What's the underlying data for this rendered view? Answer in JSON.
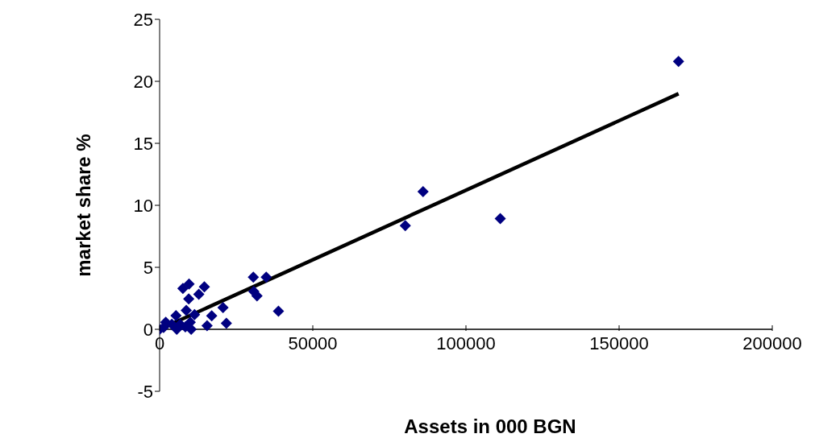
{
  "chart_data": {
    "type": "scatter",
    "xlabel": "Assets in 000 BGN",
    "ylabel": "market share %",
    "xlim": [
      0,
      200000
    ],
    "xticks": [
      0,
      50000,
      100000,
      150000,
      200000
    ],
    "ylim": [
      -5,
      25
    ],
    "yticks": [
      -5,
      0,
      5,
      10,
      15,
      20,
      25
    ],
    "grid": false,
    "legend": false,
    "marker": "diamond",
    "series": [
      {
        "type": "scatter",
        "color": "#000080",
        "x": [
          169400,
          86000,
          80200,
          111200,
          30600,
          34800,
          30750,
          31800,
          38800,
          20700,
          17000,
          21800,
          15500,
          14600,
          12800,
          9600,
          7600,
          9500,
          8700,
          11400,
          5350,
          10300,
          5600,
          2000,
          0,
          6700,
          10000,
          1300,
          4000,
          8400
        ],
        "values": [
          21.6,
          11.1,
          8.36,
          8.93,
          4.2,
          4.2,
          3.05,
          2.7,
          1.46,
          1.75,
          1.08,
          0.48,
          0.29,
          3.43,
          2.83,
          3.66,
          3.3,
          2.45,
          1.53,
          1.18,
          1.1,
          0,
          0,
          0.57,
          0,
          0.4,
          0.57,
          0.15,
          0.4,
          0.2
        ]
      },
      {
        "type": "line",
        "color": "#000000",
        "marker": "none",
        "x": [
          0,
          169400
        ],
        "values": [
          0,
          19.0
        ]
      }
    ]
  }
}
